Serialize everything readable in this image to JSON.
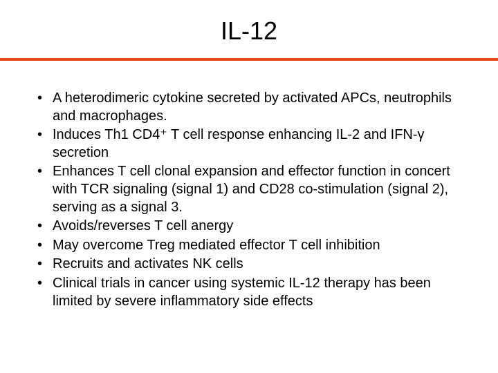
{
  "slide": {
    "title": "IL-12",
    "title_fontsize": 36,
    "divider_color": "#e64a19",
    "background_color": "#ffffff",
    "text_color": "#000000",
    "body_fontsize": 20,
    "bullets": [
      "A heterodimeric cytokine secreted by activated APCs, neutrophils and macrophages.",
      "Induces Th1 CD4⁺ T cell response enhancing IL-2 and IFN-γ secretion",
      "Enhances T cell clonal expansion and effector function in concert with TCR signaling (signal 1) and CD28 co-stimulation (signal 2), serving as a signal 3.",
      "Avoids/reverses T cell anergy",
      "May overcome Treg mediated effector T cell inhibition",
      "Recruits and activates NK cells",
      "Clinical trials in cancer using systemic IL-12 therapy has been limited by severe inflammatory side effects"
    ]
  }
}
